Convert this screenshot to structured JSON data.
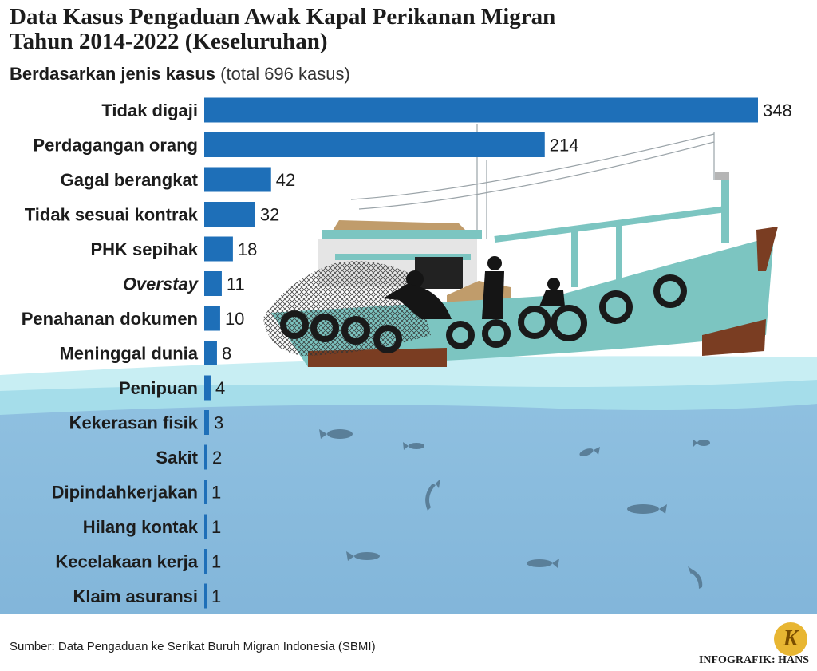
{
  "title_line1": "Data Kasus Pengaduan Awak Kapal Perikanan Migran",
  "title_line2": "Tahun 2014-2022 (Keseluruhan)",
  "subtitle_bold": "Berdasarkan jenis kasus",
  "subtitle_note": "(total 696 kasus)",
  "source": "Sumber: Data Pengaduan ke Serikat Buruh Migran Indonesia (SBMI)",
  "credit": "INFOGRAFIK: HANS",
  "logo_letter": "K",
  "colors": {
    "bar": "#1e6fb8",
    "sea_top": "#bfeaf1",
    "sea": "#86b9db",
    "hull": "#7cc5c1",
    "hull_bottom": "#7a3d22"
  },
  "chart_data": {
    "type": "bar",
    "orientation": "horizontal",
    "categories": [
      "Tidak digaji",
      "Perdagangan orang",
      "Gagal berangkat",
      "Tidak sesuai kontrak",
      "PHK sepihak",
      "Overstay",
      "Penahanan dokumen",
      "Meninggal dunia",
      "Penipuan",
      "Kekerasan fisik",
      "Sakit",
      "Dipindahkerjakan",
      "Hilang kontak",
      "Kecelakaan kerja",
      "Klaim asuransi"
    ],
    "values": [
      348,
      214,
      42,
      32,
      18,
      11,
      10,
      8,
      4,
      3,
      2,
      1,
      1,
      1,
      1
    ],
    "italic_categories": [
      "Overstay"
    ],
    "xlim": [
      0,
      348
    ],
    "grid": false,
    "legend": "none"
  }
}
